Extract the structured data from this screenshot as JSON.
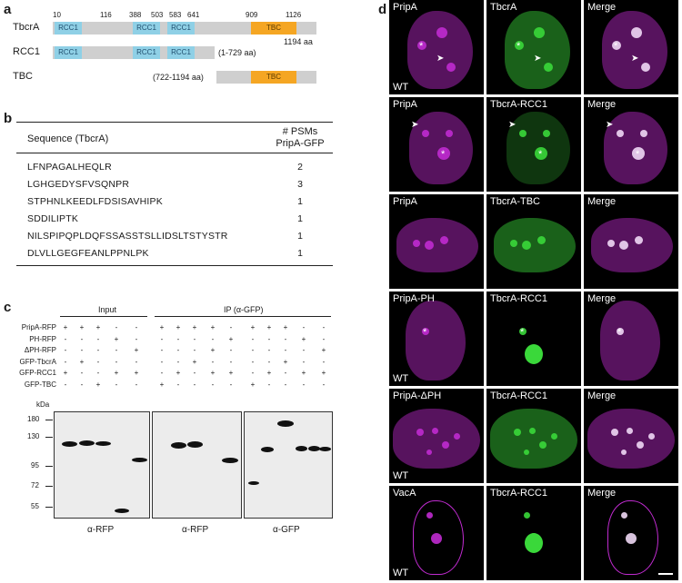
{
  "panel_a": {
    "label": "a",
    "rows": [
      {
        "name": "TbcrA",
        "length": "1194 aa"
      },
      {
        "name": "RCC1",
        "range": "(1-729 aa)"
      },
      {
        "name": "TBC",
        "range": "(722-1194 aa)"
      }
    ],
    "positions": [
      "10",
      "116",
      "388",
      "503",
      "583",
      "641",
      "909",
      "1126"
    ],
    "domain_rcc": "RCC1",
    "domain_tbc": "TBC",
    "colors": {
      "rcc1": "#8fd0e6",
      "tbc": "#f5a623",
      "backbone": "#cfcfcf"
    }
  },
  "panel_b": {
    "label": "b",
    "col1": "Sequence (TbcrA)",
    "col2_line1": "# PSMs",
    "col2_line2": "PripA-GFP",
    "rows": [
      {
        "seq": "LFNPAGALHEQLR",
        "psm": "2"
      },
      {
        "seq": "LGHGEDYSFVSQNPR",
        "psm": "3"
      },
      {
        "seq": "STPHNLKEEDLFDSISAVHIPK",
        "psm": "1"
      },
      {
        "seq": "SDDILIPTK",
        "psm": "1"
      },
      {
        "seq": "NILSPIPQPLDQFSSASSTSLLIDSLTSTYSTR",
        "psm": "1"
      },
      {
        "seq": "DLVLLGEGFEANLPPNLPK",
        "psm": "1"
      }
    ]
  },
  "panel_c": {
    "label": "c",
    "input_header": "Input",
    "ip_header": "IP (α-GFP)",
    "kda": "kDa",
    "rows": [
      {
        "name": "PripA-RFP",
        "signs": [
          "+",
          "+",
          "+",
          "-",
          "-",
          "+",
          "+",
          "+",
          "+",
          "-",
          "+",
          "+",
          "+",
          "-",
          "-"
        ]
      },
      {
        "name": "PH-RFP",
        "signs": [
          "-",
          "-",
          "-",
          "+",
          "-",
          "-",
          "-",
          "-",
          "-",
          "+",
          "-",
          "-",
          "-",
          "+",
          "-"
        ]
      },
      {
        "name": "ΔPH-RFP",
        "signs": [
          "-",
          "-",
          "-",
          "-",
          "+",
          "-",
          "-",
          "-",
          "+",
          "-",
          "-",
          "-",
          "-",
          "-",
          "+"
        ]
      },
      {
        "name": "GFP-TbcrA",
        "signs": [
          "-",
          "+",
          "-",
          "-",
          "-",
          "-",
          "-",
          "+",
          "-",
          "-",
          "-",
          "-",
          "+",
          "-",
          "-"
        ]
      },
      {
        "name": "GFP-RCC1",
        "signs": [
          "+",
          "-",
          "-",
          "+",
          "+",
          "-",
          "+",
          "-",
          "+",
          "+",
          "-",
          "+",
          "-",
          "+",
          "+"
        ]
      },
      {
        "name": "GFP-TBC",
        "signs": [
          "-",
          "-",
          "+",
          "-",
          "-",
          "+",
          "-",
          "-",
          "-",
          "-",
          "+",
          "-",
          "-",
          "-",
          "-"
        ]
      }
    ],
    "markers": [
      "180",
      "130",
      "95",
      "72",
      "55"
    ],
    "blots": [
      "α-RFP",
      "α-RFP",
      "α-GFP"
    ]
  },
  "panel_d": {
    "label": "d",
    "rows": [
      {
        "c1": "PripA",
        "c2": "TbcrA",
        "c3": "Merge",
        "wt": "WT"
      },
      {
        "c1": "PripA",
        "c2": "TbcrA-RCC1",
        "c3": "Merge",
        "wt": ""
      },
      {
        "c1": "PripA",
        "c2": "TbcrA-TBC",
        "c3": "Merge",
        "wt": ""
      },
      {
        "c1": "PripA-PH",
        "c2": "TbcrA-RCC1",
        "c3": "Merge",
        "wt": "WT"
      },
      {
        "c1": "PripA-ΔPH",
        "c2": "TbcrA-RCC1",
        "c3": "Merge",
        "wt": "WT"
      },
      {
        "c1": "VacA",
        "c2": "TbcrA-RCC1",
        "c3": "Merge",
        "wt": "WT"
      }
    ],
    "colors": {
      "magenta": "#c02bd0",
      "green": "#3ad83a"
    }
  }
}
